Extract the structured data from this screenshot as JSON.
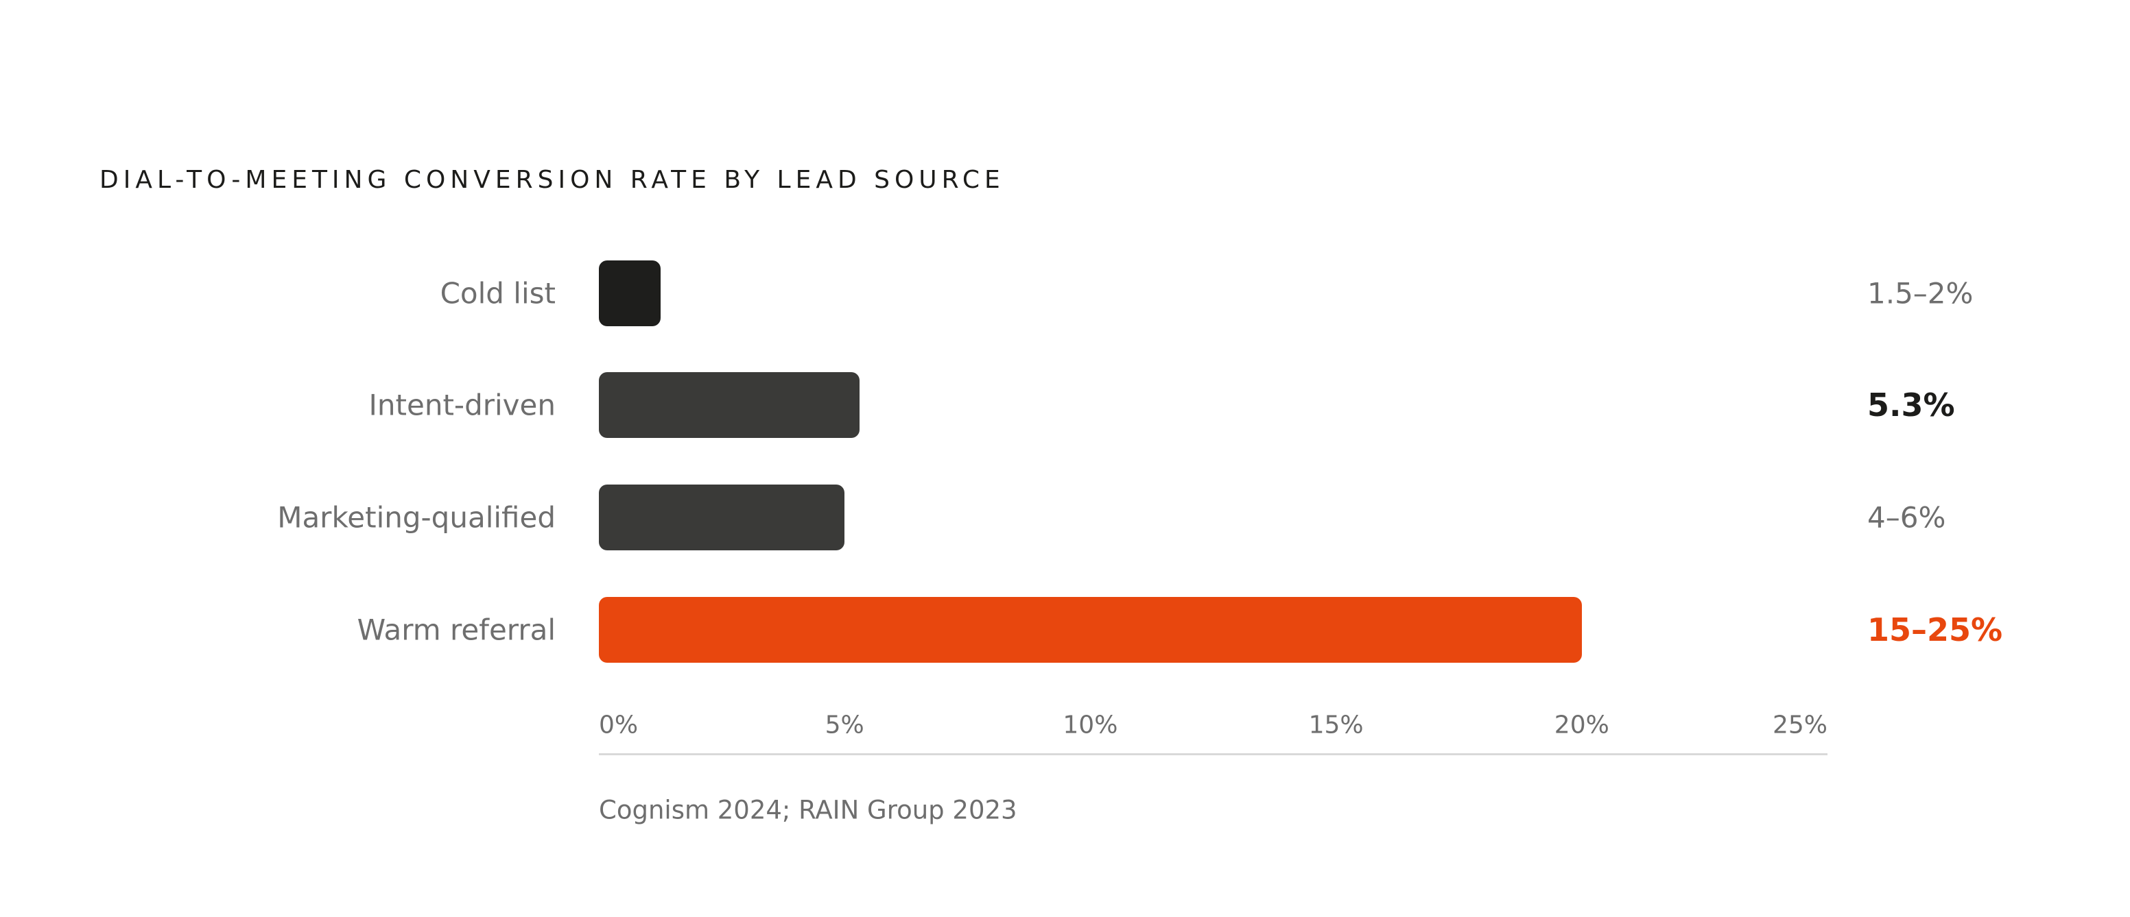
{
  "chart_data": {
    "type": "bar",
    "orientation": "horizontal",
    "title": "DIAL-TO-MEETING CONVERSION RATE BY LEAD SOURCE",
    "categories": [
      "Cold list",
      "Intent-driven",
      "Marketing-qualified",
      "Warm referral"
    ],
    "values": [
      1.75,
      5.3,
      5.0,
      20.0
    ],
    "value_labels": [
      "1.5–2%",
      "5.3%",
      "4–6%",
      "15–25%"
    ],
    "bar_colors": [
      "#1e1e1c",
      "#3a3a38",
      "#3a3a38",
      "#e8470e"
    ],
    "value_label_styles": [
      "muted",
      "emphasis",
      "muted",
      "accent"
    ],
    "xlim": [
      0,
      25
    ],
    "x_ticks": [
      0,
      5,
      10,
      15,
      20,
      25
    ],
    "x_tick_labels": [
      "0%",
      "5%",
      "10%",
      "15%",
      "20%",
      "25%"
    ],
    "grid": false,
    "source": "Cognism 2024; RAIN Group 2023"
  },
  "colors": {
    "accent": "#e8470e",
    "dark_bar": "#3a3a38",
    "darkest_bar": "#1e1e1c",
    "muted_text": "#6e6e6e",
    "title_text": "#1c1c1a"
  }
}
